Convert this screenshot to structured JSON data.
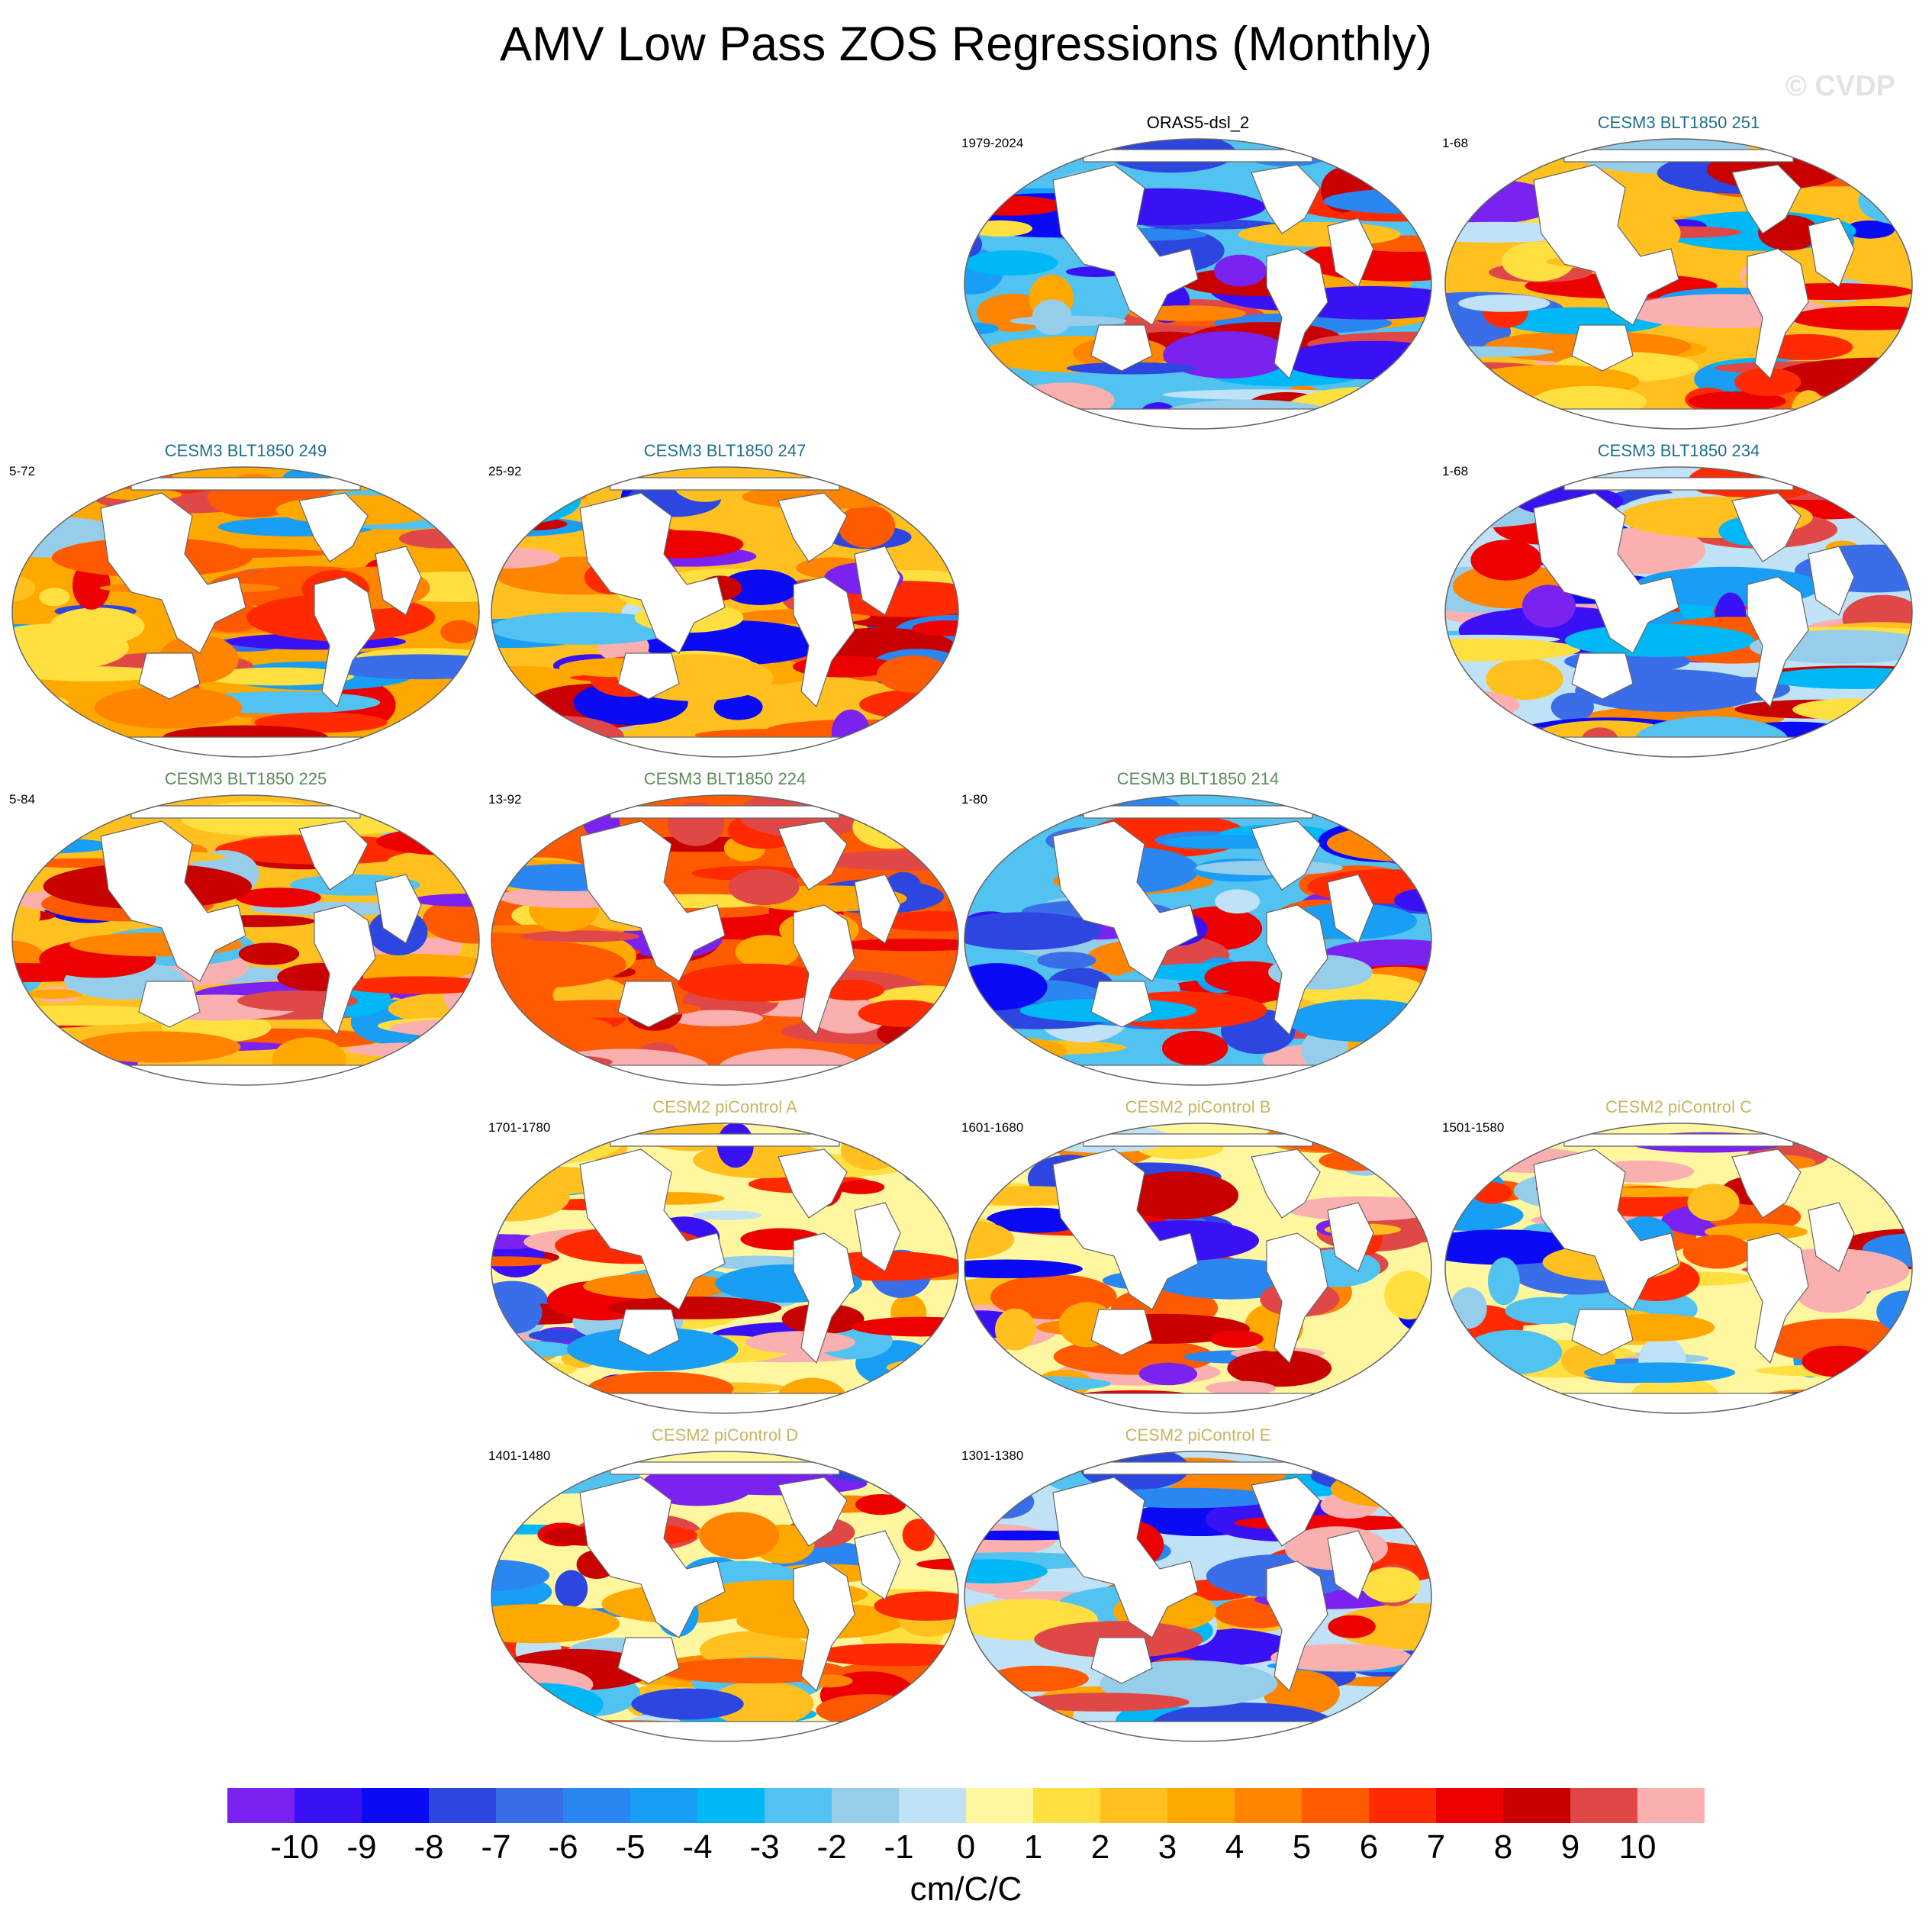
{
  "title": "AMV Low Pass ZOS Regressions (Monthly)",
  "watermark": "© CVDP",
  "colors": {
    "title_obs": "#000000",
    "title_blue": "#1f6f8b",
    "title_green": "#5b8c5a",
    "title_gold": "#c8b560",
    "land": "#ffffff",
    "outline": "#666666"
  },
  "panels": [
    {
      "id": "orasdsl2",
      "title": "ORAS5-dsl_2",
      "years": "1979-2024",
      "title_color": "obs",
      "pattern": {
        "pos": 0.38,
        "amp": 1.0,
        "seed": 3
      }
    },
    {
      "id": "blt251",
      "title": "CESM3 BLT1850 251",
      "years": "1-68",
      "title_color": "blue",
      "pattern": {
        "pos": 0.7,
        "amp": 1.0,
        "seed": 11
      }
    },
    {
      "id": "blt249",
      "title": "CESM3 BLT1850 249",
      "years": "5-72",
      "title_color": "blue",
      "pattern": {
        "pos": 0.72,
        "amp": 1.0,
        "seed": 17
      }
    },
    {
      "id": "blt247",
      "title": "CESM3 BLT1850 247",
      "years": "25-92",
      "title_color": "blue",
      "pattern": {
        "pos": 0.66,
        "amp": 0.9,
        "seed": 23
      }
    },
    {
      "id": "blt234",
      "title": "CESM3 BLT1850 234",
      "years": "1-68",
      "title_color": "blue",
      "pattern": {
        "pos": 0.48,
        "amp": 1.0,
        "seed": 29
      }
    },
    {
      "id": "blt225",
      "title": "CESM3 BLT1850 225",
      "years": "5-84",
      "title_color": "green",
      "pattern": {
        "pos": 0.7,
        "amp": 1.0,
        "seed": 31
      }
    },
    {
      "id": "blt224",
      "title": "CESM3 BLT1850 224",
      "years": "13-92",
      "title_color": "green",
      "pattern": {
        "pos": 0.86,
        "amp": 0.9,
        "seed": 37
      }
    },
    {
      "id": "blt214",
      "title": "CESM3 BLT1850 214",
      "years": "1-80",
      "title_color": "green",
      "pattern": {
        "pos": 0.4,
        "amp": 0.8,
        "seed": 41
      }
    },
    {
      "id": "picA",
      "title": "CESM2 piControl A",
      "years": "1701-1780",
      "title_color": "gold",
      "pattern": {
        "pos": 0.55,
        "amp": 0.8,
        "seed": 43
      }
    },
    {
      "id": "picB",
      "title": "CESM2 piControl B",
      "years": "1601-1680",
      "title_color": "gold",
      "pattern": {
        "pos": 0.55,
        "amp": 0.8,
        "seed": 47
      }
    },
    {
      "id": "picC",
      "title": "CESM2 piControl C",
      "years": "1501-1580",
      "title_color": "gold",
      "pattern": {
        "pos": 0.58,
        "amp": 0.8,
        "seed": 53
      }
    },
    {
      "id": "picD",
      "title": "CESM2 piControl D",
      "years": "1401-1480",
      "title_color": "gold",
      "pattern": {
        "pos": 0.56,
        "amp": 0.9,
        "seed": 59
      }
    },
    {
      "id": "picE",
      "title": "CESM2 piControl E",
      "years": "1301-1380",
      "title_color": "gold",
      "pattern": {
        "pos": 0.5,
        "amp": 0.9,
        "seed": 61
      }
    }
  ],
  "colorbar": {
    "colors": [
      "#7a22f0",
      "#3a10f5",
      "#0a0af5",
      "#2d46e0",
      "#3a6ee8",
      "#2a86f0",
      "#189ef5",
      "#00b8f5",
      "#52c2f0",
      "#96cdeb",
      "#bfe2f6",
      "#fff7a0",
      "#ffe040",
      "#ffc020",
      "#ffa800",
      "#ff8400",
      "#ff5a00",
      "#ff2a00",
      "#ec0000",
      "#c80000",
      "#e04848",
      "#fbb0b0"
    ],
    "tick_labels": [
      "-10",
      "-9",
      "-8",
      "-7",
      "-6",
      "-5",
      "-4",
      "-3",
      "-2",
      "-1",
      "0",
      "1",
      "2",
      "3",
      "4",
      "5",
      "6",
      "7",
      "8",
      "9",
      "10"
    ],
    "units": "cm/C/C"
  }
}
